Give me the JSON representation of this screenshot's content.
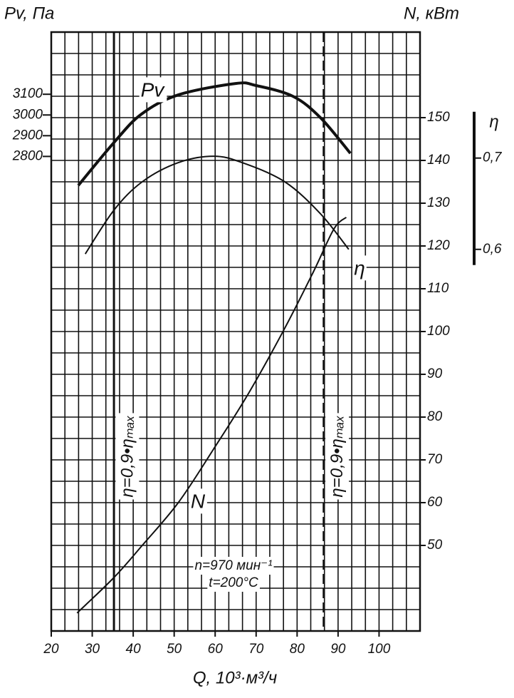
{
  "chart_data": {
    "type": "line",
    "x_label": "Q, 10³·м³/ч",
    "y_label": "Pv, Па",
    "y2_label": "N, кВт",
    "y3_label": "η",
    "xlim": [
      20,
      110
    ],
    "xticks": [
      20,
      30,
      40,
      50,
      60,
      70,
      80,
      90,
      100
    ],
    "xgrid": [
      20,
      23.33,
      26.67,
      30,
      33.33,
      36.67,
      40,
      43.33,
      46.67,
      50,
      53.33,
      56.67,
      60,
      63.33,
      66.67,
      70,
      73.33,
      76.67,
      80,
      83.33,
      86.67,
      90,
      93.33,
      96.67,
      100,
      103.33,
      106.67,
      110
    ],
    "ylim": [
      510,
      3400
    ],
    "yticks": [
      2800,
      2900,
      3000,
      3100
    ],
    "y2lim": [
      30,
      170
    ],
    "y2ticks": [
      50,
      60,
      70,
      80,
      90,
      100,
      110,
      120,
      130,
      140,
      150
    ],
    "y2grid": [
      30,
      35,
      40,
      45,
      50,
      55,
      60,
      65,
      70,
      75,
      80,
      85,
      90,
      95,
      100,
      105,
      110,
      115,
      120,
      125,
      130,
      135,
      140,
      145,
      150,
      155,
      160,
      165,
      170
    ],
    "y3lim": [
      0.182,
      0.838
    ],
    "y3ticks": [
      {
        "value": 0.6,
        "label": "0,6"
      },
      {
        "value": 0.7,
        "label": "0,7"
      }
    ],
    "grid": true,
    "series": [
      {
        "name": "Pv",
        "axis": "y",
        "color": "#111111",
        "x": [
          26.6,
          35.3,
          42,
          51,
          65,
          70,
          79,
          85.7,
          93
        ],
        "values": [
          2660,
          2867,
          3004,
          3097,
          3152,
          3142,
          3090,
          2987,
          2815
        ]
      },
      {
        "name": "η",
        "axis": "y3",
        "color": "#111111",
        "x": [
          28.3,
          35.3,
          42.2,
          51,
          59.6,
          66.6,
          77,
          85.7,
          92.6
        ],
        "values": [
          0.595,
          0.643,
          0.674,
          0.695,
          0.702,
          0.695,
          0.674,
          0.639,
          0.6
        ]
      },
      {
        "name": "N",
        "axis": "y2",
        "color": "#111111",
        "x": [
          26.3,
          35.3,
          42.2,
          51,
          59.6,
          68.3,
          77,
          84,
          89,
          92
        ],
        "values": [
          34.2,
          42.5,
          50,
          60,
          72.5,
          85.8,
          100.8,
          114,
          124,
          126.7
        ]
      }
    ],
    "vlines": [
      {
        "x": 35.3,
        "label": "η=0,9•ηₘₐₓ"
      },
      {
        "x": 86.5,
        "label": "η=0,9•ηₘₐₓ"
      }
    ],
    "annotations": [
      "n=970 мин⁻¹",
      "t=200°C"
    ]
  }
}
